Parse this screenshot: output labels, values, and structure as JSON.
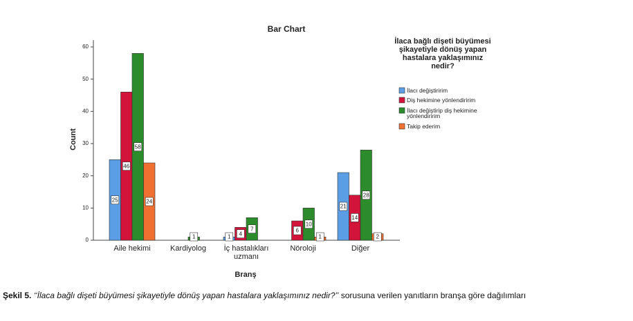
{
  "chart_data": {
    "type": "bar",
    "title": "Bar Chart",
    "x_label": "Branş",
    "y_label": "Count",
    "categories": [
      "Aile hekimi",
      "Kardiyolog",
      "İç hastalıkları uzmanı",
      "Nöroloji",
      "Diğer"
    ],
    "legend_title": "İlaca bağlı dişeti büyümesi şikayetiyle dönüş yapan hastalara yaklaşımınız nedir?",
    "series": [
      {
        "name": "İlacı değiştiririm",
        "color": "#5b9ee6",
        "values": [
          25,
          null,
          1,
          null,
          21
        ]
      },
      {
        "name": "Diş hekimine yönlendiririm",
        "color": "#d2143a",
        "values": [
          46,
          null,
          4,
          6,
          14
        ]
      },
      {
        "name": "İlacı değiştirip diş hekimine yönlendiririm",
        "color": "#2c8c2c",
        "values": [
          58,
          1,
          7,
          10,
          28
        ]
      },
      {
        "name": "Takip ederim",
        "color": "#f07032",
        "values": [
          24,
          null,
          null,
          1,
          2
        ]
      }
    ],
    "ylim": [
      0,
      60
    ],
    "yticks": [
      0,
      10,
      20,
      30,
      40,
      50,
      60
    ]
  },
  "caption": {
    "label": "Şekil 5.",
    "question": "‘‘İlaca bağlı dişeti büyümesi şikayetiyle dönüş yapan hastalara yaklaşımınız nedir?’’",
    "text": " sorusuna verilen yanıtların branşa göre dağılımları"
  }
}
